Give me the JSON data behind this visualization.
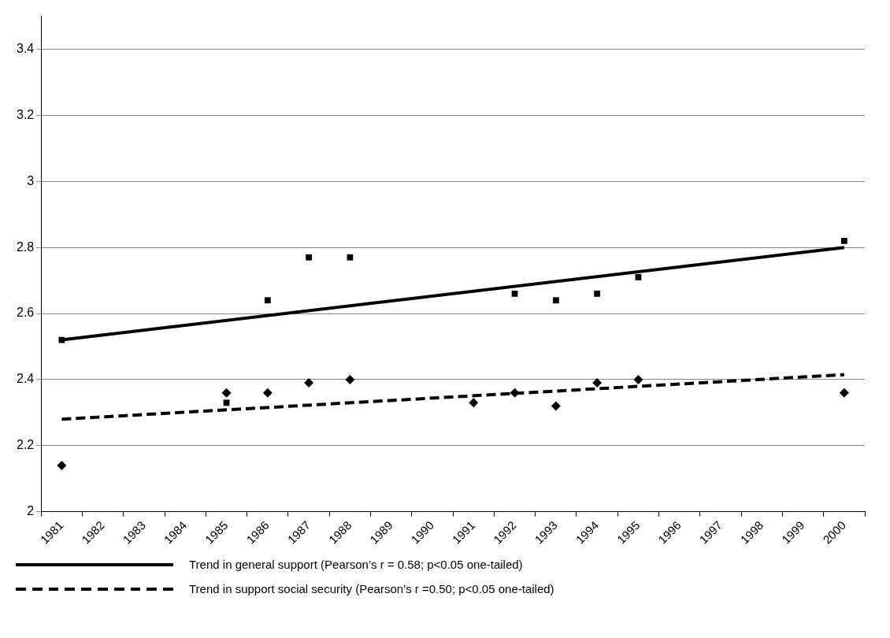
{
  "chart_data": {
    "type": "scatter",
    "categories": [
      "1981",
      "1982",
      "1983",
      "1984",
      "1985",
      "1986",
      "1987",
      "1988",
      "1989",
      "1990",
      "1991",
      "1992",
      "1993",
      "1994",
      "1995",
      "1996",
      "1997",
      "1998",
      "1999",
      "2000"
    ],
    "series": [
      {
        "color": "#000000",
        "marker": "square",
        "values": [
          2.52,
          null,
          null,
          null,
          2.33,
          2.64,
          2.77,
          2.77,
          null,
          null,
          null,
          2.66,
          2.64,
          2.66,
          2.71,
          null,
          null,
          null,
          null,
          2.82
        ]
      },
      {
        "color": "#000000",
        "marker": "diamond",
        "values": [
          2.14,
          null,
          null,
          null,
          2.36,
          2.36,
          2.39,
          2.4,
          null,
          null,
          2.33,
          2.36,
          2.32,
          2.39,
          2.4,
          null,
          null,
          null,
          null,
          2.36
        ]
      },
      {
        "type": "line",
        "name": "Trend in general support (Pearson’s r = 0.58; p<0.05 one-tailed)",
        "color": "#000000",
        "marker": "none",
        "line_style": "solid",
        "values": [
          2.52,
          null,
          null,
          null,
          null,
          null,
          null,
          null,
          null,
          null,
          null,
          null,
          null,
          null,
          null,
          null,
          null,
          null,
          null,
          2.8
        ]
      },
      {
        "type": "line",
        "name": "Trend in support social security (Pearson’s r =0.50; p<0.05 one-tailed)",
        "color": "#000000",
        "marker": "none",
        "line_style": "dashed",
        "values": [
          2.28,
          null,
          null,
          null,
          null,
          null,
          null,
          null,
          null,
          null,
          null,
          null,
          null,
          null,
          null,
          null,
          null,
          null,
          null,
          2.415
        ]
      }
    ],
    "ylim": [
      2,
      3.5
    ],
    "yticks": [
      2,
      2.2,
      2.4,
      2.6,
      2.8,
      3,
      3.2,
      3.4
    ],
    "grid": "y",
    "legend": "bottom"
  }
}
